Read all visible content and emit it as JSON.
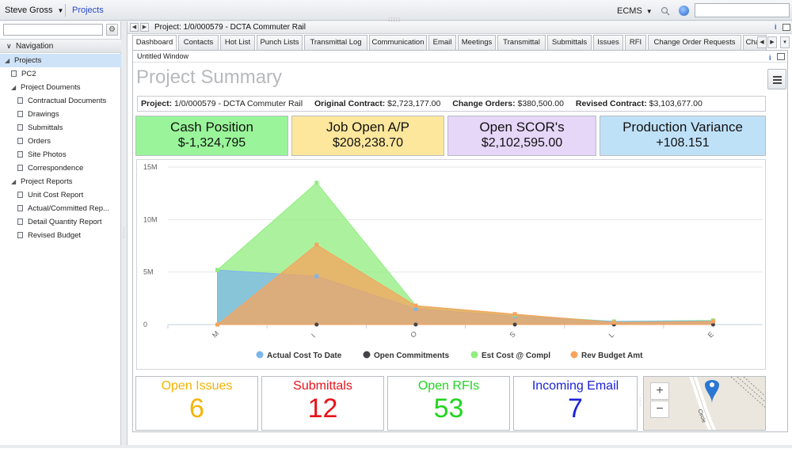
{
  "topbar": {
    "user": "Steve Gross",
    "projects_link": "Projects",
    "ecms": "ECMS",
    "search_value": ""
  },
  "sidebar": {
    "search_value": "",
    "nav_header": "Navigation",
    "items": [
      {
        "label": "Projects",
        "level": 0,
        "type": "folder",
        "selected": true
      },
      {
        "label": "PC2",
        "level": 1,
        "type": "doc"
      },
      {
        "label": "Project Douments",
        "level": 1,
        "type": "folder"
      },
      {
        "label": "Contractual Documents",
        "level": 2,
        "type": "doc"
      },
      {
        "label": "Drawings",
        "level": 2,
        "type": "doc"
      },
      {
        "label": "Submittals",
        "level": 2,
        "type": "doc"
      },
      {
        "label": "Orders",
        "level": 2,
        "type": "doc"
      },
      {
        "label": "Site Photos",
        "level": 2,
        "type": "doc"
      },
      {
        "label": "Correspondence",
        "level": 2,
        "type": "doc"
      },
      {
        "label": "Project Reports",
        "level": 1,
        "type": "folder"
      },
      {
        "label": "Unit Cost Report",
        "level": 2,
        "type": "doc"
      },
      {
        "label": "Actual/Committed Rep...",
        "level": 2,
        "type": "doc"
      },
      {
        "label": "Detail Quantity Report",
        "level": 2,
        "type": "doc"
      },
      {
        "label": "Revised Budget",
        "level": 2,
        "type": "doc"
      }
    ]
  },
  "main": {
    "title": "Project: 1/0/000579 - DCTA Commuter Rail",
    "tabs": [
      {
        "label": "Dashboard",
        "active": true
      },
      {
        "label": "Contacts"
      },
      {
        "label": "Hot List"
      },
      {
        "label": "Punch Lists"
      },
      {
        "label": "Transmittal Log"
      },
      {
        "label": "Communication"
      },
      {
        "label": "Email"
      },
      {
        "label": "Meetings"
      },
      {
        "label": "Transmittal"
      },
      {
        "label": "Submittals"
      },
      {
        "label": "Issues"
      },
      {
        "label": "RFI"
      },
      {
        "label": "Change Order Requests"
      },
      {
        "label": "Chan"
      }
    ],
    "window_title": "Untitled Window",
    "page_title": "Project Summary"
  },
  "summary": {
    "project_label": "Project:",
    "project_value": "1/0/000579 - DCTA Commuter Rail",
    "original_label": "Original Contract:",
    "original_value": "$2,723,177.00",
    "change_label": "Change Orders:",
    "change_value": "$380,500.00",
    "revised_label": "Revised Contract:",
    "revised_value": "$3,103,677.00"
  },
  "kpis": [
    {
      "label": "Cash Position",
      "value": "$-1,324,795",
      "color": "#9af59a"
    },
    {
      "label": "Job Open A/P",
      "value": "$208,238.70",
      "color": "#fde79d"
    },
    {
      "label": "Open SCOR's",
      "value": "$2,102,595.00",
      "color": "#e6d6f8"
    },
    {
      "label": "Production Variance",
      "value": "+108.151",
      "color": "#bfe1f8"
    }
  ],
  "chart_data": {
    "type": "area",
    "categories": [
      "M",
      "I",
      "O",
      "S",
      "L",
      "E"
    ],
    "y_tick_labels": [
      "15M",
      "10M",
      "5M",
      "0"
    ],
    "ylim": [
      0,
      15000000
    ],
    "series": [
      {
        "name": "Actual Cost To Date",
        "color": "#7cb5ec",
        "values": [
          5200000,
          4600000,
          1500000,
          800000,
          300000,
          350000
        ]
      },
      {
        "name": "Open Commitments",
        "color": "#434348",
        "values": [
          0,
          0,
          0,
          0,
          0,
          0
        ]
      },
      {
        "name": "Est Cost @ Compl",
        "color": "#90ed7d",
        "values": [
          5200000,
          13500000,
          1800000,
          900000,
          300000,
          400000
        ]
      },
      {
        "name": "Rev Budget Amt",
        "color": "#f7a35c",
        "values": [
          0,
          7600000,
          1800000,
          1000000,
          200000,
          300000
        ]
      }
    ],
    "grid": true,
    "legend": "bottom"
  },
  "stats": [
    {
      "label": "Open Issues",
      "value": "6",
      "color": "#f4b400"
    },
    {
      "label": "Submittals",
      "value": "12",
      "color": "#e8121a"
    },
    {
      "label": "Open RFIs",
      "value": "53",
      "color": "#22d422"
    },
    {
      "label": "Incoming Email",
      "value": "7",
      "color": "#1c22d8"
    }
  ],
  "map": {
    "zoom_in": "+",
    "zoom_out": "−",
    "street": "Circle"
  }
}
